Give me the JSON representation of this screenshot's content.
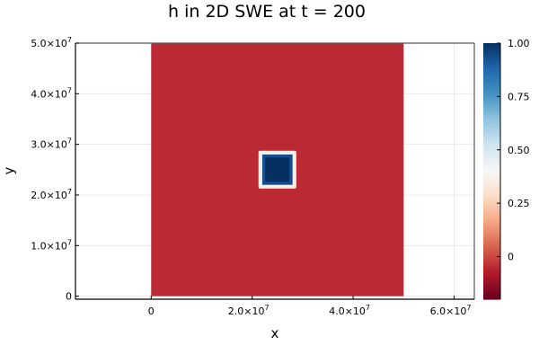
{
  "chart_data": {
    "type": "heatmap",
    "title": "h in 2D SWE at t = 200",
    "xlabel": "x",
    "ylabel": "y",
    "xlim": [
      -15000000,
      64000000
    ],
    "ylim": [
      -600000,
      50000000
    ],
    "grid": true,
    "x_ticks": [
      {
        "value": 0,
        "mantissa": "0",
        "exp": ""
      },
      {
        "value": 20000000,
        "mantissa": "2.0×10",
        "exp": "7"
      },
      {
        "value": 40000000,
        "mantissa": "4.0×10",
        "exp": "7"
      },
      {
        "value": 60000000,
        "mantissa": "6.0×10",
        "exp": "7"
      }
    ],
    "y_ticks": [
      {
        "value": 0,
        "mantissa": "0",
        "exp": ""
      },
      {
        "value": 10000000,
        "mantissa": "1.0×10",
        "exp": "7"
      },
      {
        "value": 20000000,
        "mantissa": "2.0×10",
        "exp": "7"
      },
      {
        "value": 30000000,
        "mantissa": "3.0×10",
        "exp": "7"
      },
      {
        "value": 40000000,
        "mantissa": "4.0×10",
        "exp": "7"
      },
      {
        "value": 50000000,
        "mantissa": "5.0×10",
        "exp": "7"
      }
    ],
    "field": {
      "domain_x": [
        0,
        50000000
      ],
      "domain_y": [
        0,
        50000000
      ],
      "background_value": -0.05,
      "square_center": [
        25000000,
        25000000
      ],
      "square_half_width": 3000000,
      "peak_value": 1.0,
      "rim_value": 0.35
    },
    "colorbar": {
      "colormap": "RdBu",
      "range": [
        -0.2,
        1.0
      ],
      "ticks": [
        {
          "value": 0,
          "label": "0"
        },
        {
          "value": 0.25,
          "label": "0.25"
        },
        {
          "value": 0.5,
          "label": "0.50"
        },
        {
          "value": 0.75,
          "label": "0.75"
        },
        {
          "value": 1.0,
          "label": "1.00"
        }
      ],
      "stops": [
        "#67001f",
        "#b2182b",
        "#d6604d",
        "#f4a582",
        "#fddbc7",
        "#f7f7f7",
        "#d1e5f0",
        "#92c5de",
        "#4393c3",
        "#2166ac",
        "#053061"
      ]
    }
  }
}
